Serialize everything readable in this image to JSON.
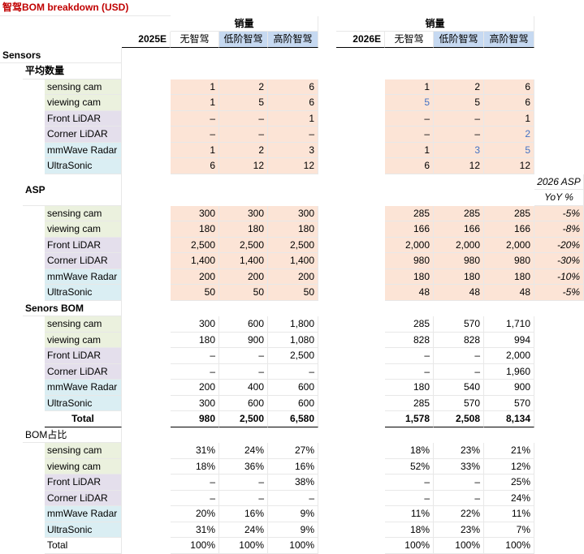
{
  "title": "智驾BOM breakdown (USD)",
  "volume_label": "销量",
  "year_2025": "2025E",
  "year_2026": "2026E",
  "tiers": [
    "无智驾",
    "低阶智驾",
    "高阶智驾"
  ],
  "section_sensors": "Sensors",
  "section_avg_qty": "平均数量",
  "section_asp": "ASP",
  "yoy_header_1": "2026 ASP",
  "yoy_header_2": "YoY %",
  "section_bom": "Senors BOM",
  "section_share": "BOM占比",
  "total_label": "Total",
  "rows": {
    "qty": [
      {
        "label": "sensing cam",
        "v25": [
          "1",
          "2",
          "6"
        ],
        "v26": [
          "1",
          "2",
          "6"
        ]
      },
      {
        "label": "viewing cam",
        "v25": [
          "1",
          "5",
          "6"
        ],
        "v26": [
          "5",
          "5",
          "6"
        ]
      },
      {
        "label": "Front LiDAR",
        "v25": [
          "–",
          "–",
          "1"
        ],
        "v26": [
          "–",
          "–",
          "1"
        ]
      },
      {
        "label": "Corner LiDAR",
        "v25": [
          "–",
          "–",
          "–"
        ],
        "v26": [
          "–",
          "–",
          "2"
        ]
      },
      {
        "label": "mmWave Radar",
        "v25": [
          "1",
          "2",
          "3"
        ],
        "v26": [
          "1",
          "3",
          "5"
        ]
      },
      {
        "label": "UltraSonic",
        "v25": [
          "6",
          "12",
          "12"
        ],
        "v26": [
          "6",
          "12",
          "12"
        ]
      }
    ],
    "asp": [
      {
        "label": "sensing cam",
        "v25": [
          "300",
          "300",
          "300"
        ],
        "v26": [
          "285",
          "285",
          "285"
        ],
        "yoy": "-5%"
      },
      {
        "label": "viewing cam",
        "v25": [
          "180",
          "180",
          "180"
        ],
        "v26": [
          "166",
          "166",
          "166"
        ],
        "yoy": "-8%"
      },
      {
        "label": "Front LiDAR",
        "v25": [
          "2,500",
          "2,500",
          "2,500"
        ],
        "v26": [
          "2,000",
          "2,000",
          "2,000"
        ],
        "yoy": "-20%"
      },
      {
        "label": "Corner LiDAR",
        "v25": [
          "1,400",
          "1,400",
          "1,400"
        ],
        "v26": [
          "980",
          "980",
          "980"
        ],
        "yoy": "-30%"
      },
      {
        "label": "mmWave Radar",
        "v25": [
          "200",
          "200",
          "200"
        ],
        "v26": [
          "180",
          "180",
          "180"
        ],
        "yoy": "-10%"
      },
      {
        "label": "UltraSonic",
        "v25": [
          "50",
          "50",
          "50"
        ],
        "v26": [
          "48",
          "48",
          "48"
        ],
        "yoy": "-5%"
      }
    ],
    "bom": [
      {
        "label": "sensing cam",
        "v25": [
          "300",
          "600",
          "1,800"
        ],
        "v26": [
          "285",
          "570",
          "1,710"
        ]
      },
      {
        "label": "viewing cam",
        "v25": [
          "180",
          "900",
          "1,080"
        ],
        "v26": [
          "828",
          "828",
          "994"
        ]
      },
      {
        "label": "Front LiDAR",
        "v25": [
          "–",
          "–",
          "2,500"
        ],
        "v26": [
          "–",
          "–",
          "2,000"
        ]
      },
      {
        "label": "Corner LiDAR",
        "v25": [
          "–",
          "–",
          "–"
        ],
        "v26": [
          "–",
          "–",
          "1,960"
        ]
      },
      {
        "label": "mmWave Radar",
        "v25": [
          "200",
          "400",
          "600"
        ],
        "v26": [
          "180",
          "540",
          "900"
        ]
      },
      {
        "label": "UltraSonic",
        "v25": [
          "300",
          "600",
          "600"
        ],
        "v26": [
          "285",
          "570",
          "570"
        ]
      }
    ],
    "bom_total": {
      "v25": [
        "980",
        "2,500",
        "6,580"
      ],
      "v26": [
        "1,578",
        "2,508",
        "8,134"
      ]
    },
    "share": [
      {
        "label": "sensing cam",
        "v25": [
          "31%",
          "24%",
          "27%"
        ],
        "v26": [
          "18%",
          "23%",
          "21%"
        ]
      },
      {
        "label": "viewing cam",
        "v25": [
          "18%",
          "36%",
          "16%"
        ],
        "v26": [
          "52%",
          "33%",
          "12%"
        ]
      },
      {
        "label": "Front LiDAR",
        "v25": [
          "–",
          "–",
          "38%"
        ],
        "v26": [
          "–",
          "–",
          "25%"
        ]
      },
      {
        "label": "Corner LiDAR",
        "v25": [
          "–",
          "–",
          "–"
        ],
        "v26": [
          "–",
          "–",
          "24%"
        ]
      },
      {
        "label": "mmWave Radar",
        "v25": [
          "20%",
          "16%",
          "9%"
        ],
        "v26": [
          "11%",
          "22%",
          "11%"
        ]
      },
      {
        "label": "UltraSonic",
        "v25": [
          "31%",
          "24%",
          "9%"
        ],
        "v26": [
          "18%",
          "23%",
          "7%"
        ]
      }
    ],
    "share_total": {
      "v25": [
        "100%",
        "100%",
        "100%"
      ],
      "v26": [
        "100%",
        "100%",
        "100%"
      ]
    }
  },
  "colors": {
    "title": "#c00000",
    "peach": "#fce4d6",
    "header_blue": "#c6d9f1",
    "green": "#ebf1de",
    "purple": "#e4dfec",
    "light_blue": "#daeef3",
    "highlight_text": "#4472c4"
  },
  "highlighted_cells": [
    "qty.1.v26.0",
    "qty.3.v26.2",
    "qty.4.v26.1",
    "qty.4.v26.2"
  ]
}
